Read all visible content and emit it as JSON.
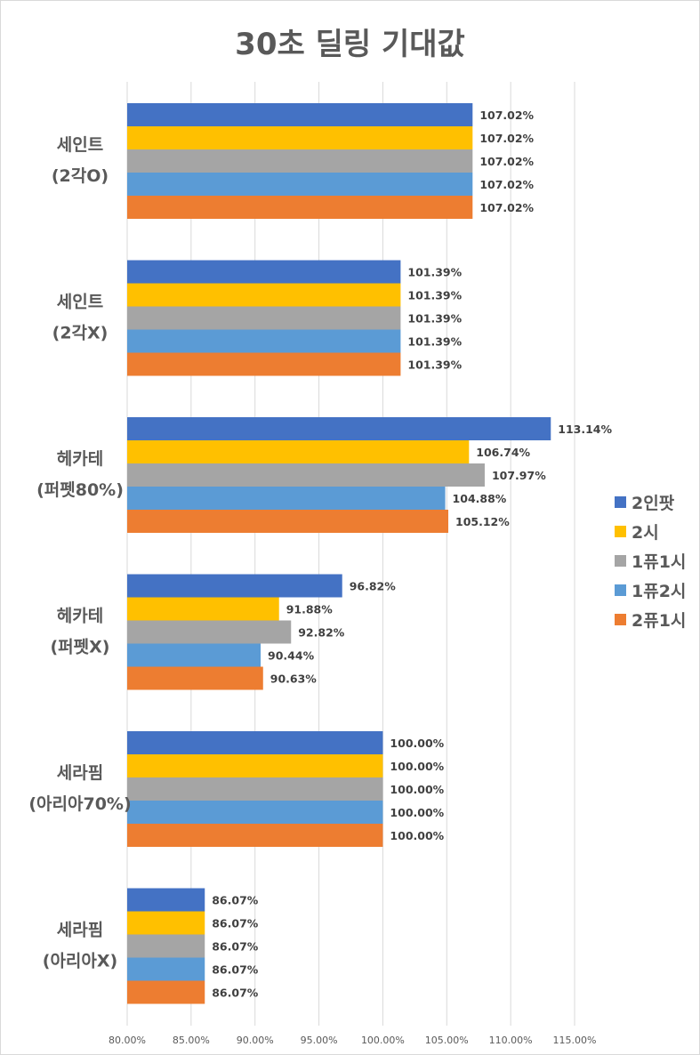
{
  "chart_data": {
    "type": "bar",
    "orientation": "horizontal",
    "title": "30초 딜링 기대값",
    "categories": [
      [
        "세인트",
        "(2각O)"
      ],
      [
        "세인트",
        "(2각X)"
      ],
      [
        "헤카테",
        "(퍼펫80%)"
      ],
      [
        "헤카테",
        "(퍼펫X)"
      ],
      [
        "세라핌",
        "(아리아70%)"
      ],
      [
        "세라핌",
        "(아리아X)"
      ]
    ],
    "series": [
      {
        "name": "2인팟",
        "color": "#4472C4",
        "values": [
          107.02,
          101.39,
          113.14,
          96.82,
          100.0,
          86.07
        ]
      },
      {
        "name": "2시",
        "color": "#FFC000",
        "values": [
          107.02,
          101.39,
          106.74,
          91.88,
          100.0,
          86.07
        ]
      },
      {
        "name": "1퓨1시",
        "color": "#A5A5A5",
        "values": [
          107.02,
          101.39,
          107.97,
          92.82,
          100.0,
          86.07
        ]
      },
      {
        "name": "1퓨2시",
        "color": "#5B9BD5",
        "values": [
          107.02,
          101.39,
          104.88,
          90.44,
          100.0,
          86.07
        ]
      },
      {
        "name": "2퓨1시",
        "color": "#ED7D31",
        "values": [
          107.02,
          101.39,
          105.12,
          90.63,
          100.0,
          86.07
        ]
      }
    ],
    "xlim": [
      80,
      115
    ],
    "xticks": [
      80,
      85,
      90,
      95,
      100,
      105,
      110,
      115
    ],
    "tick_labels": [
      "80.00%",
      "85.00%",
      "90.00%",
      "95.00%",
      "100.00%",
      "105.00%",
      "110.00%",
      "115.00%"
    ],
    "value_labels": [
      [
        "107.02%",
        "107.02%",
        "107.02%",
        "107.02%",
        "107.02%"
      ],
      [
        "101.39%",
        "101.39%",
        "101.39%",
        "101.39%",
        "101.39%"
      ],
      [
        "113.14%",
        "106.74%",
        "107.97%",
        "104.88%",
        "105.12%"
      ],
      [
        "96.82%",
        "91.88%",
        "92.82%",
        "90.44%",
        "90.63%"
      ],
      [
        "100.00%",
        "100.00%",
        "100.00%",
        "100.00%",
        "100.00%"
      ],
      [
        "86.07%",
        "86.07%",
        "86.07%",
        "86.07%",
        "86.07%"
      ]
    ],
    "grid": true,
    "legend_position": "right"
  }
}
